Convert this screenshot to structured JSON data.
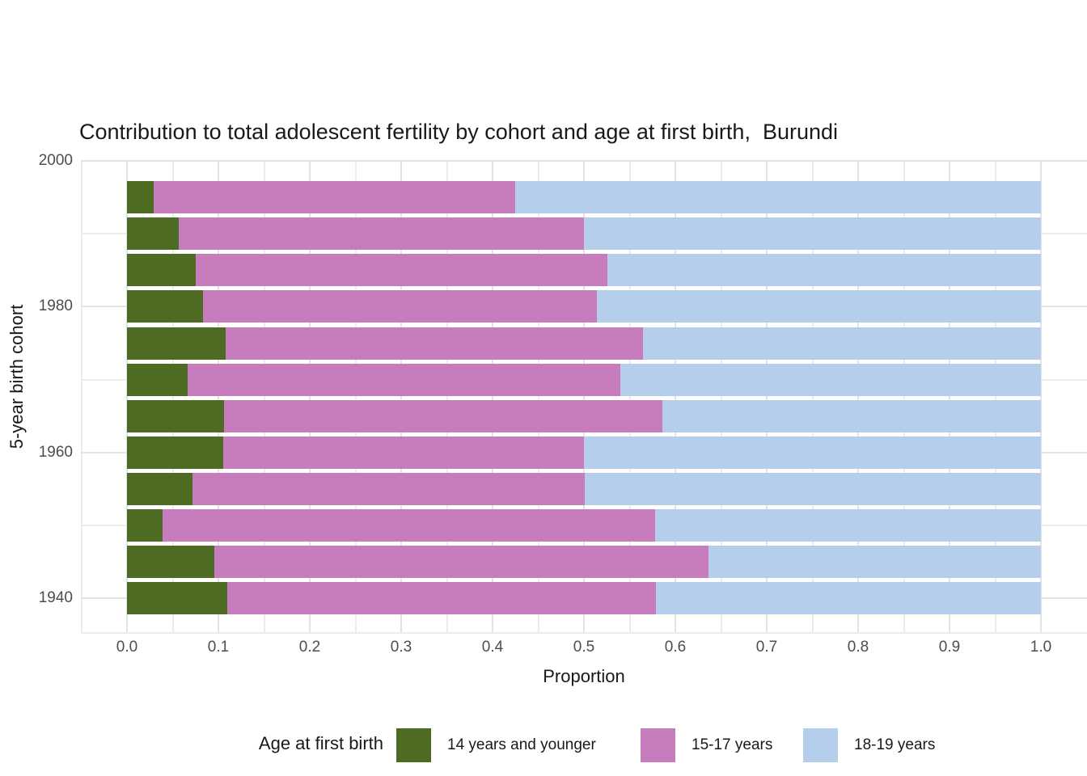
{
  "page": {
    "background": "#FFFFFF"
  },
  "colors": {
    "grid_major": "#E3E3E3",
    "grid_minor": "#ECECEC",
    "tick_text": "#4D4D4D",
    "text": "#191919"
  },
  "chart_data": {
    "type": "bar",
    "variant": "horizontal_stacked_proportion",
    "title": "Contribution to total adolescent fertility by cohort and age at first birth,  Burundi",
    "xlabel": "Proportion",
    "ylabel": "5-year birth cohort",
    "grid": true,
    "legend_position": "bottom",
    "legend": {
      "title": "Age at first birth"
    },
    "xlim": [
      -0.05,
      1.05
    ],
    "x_major_ticks": [
      0.0,
      0.1,
      0.2,
      0.3,
      0.4,
      0.5,
      0.6,
      0.7,
      0.8,
      0.9,
      1.0
    ],
    "x_tick_labels": [
      "0.0",
      "0.1",
      "0.2",
      "0.3",
      "0.4",
      "0.5",
      "0.6",
      "0.7",
      "0.8",
      "0.9",
      "1.0"
    ],
    "x_minor_ticks": [
      -0.05,
      0.05,
      0.15,
      0.25,
      0.35,
      0.45,
      0.55,
      0.65,
      0.75,
      0.85,
      0.95
    ],
    "y_major_ticks": [
      2000,
      1980,
      1960,
      1940
    ],
    "y_tick_labels": [
      "2000",
      "1980",
      "1960",
      "1940"
    ],
    "y_minor_ticks": [
      1990,
      1970,
      1950
    ],
    "categories": [
      1995,
      1990,
      1985,
      1980,
      1975,
      1970,
      1965,
      1960,
      1955,
      1950,
      1945,
      1940
    ],
    "series": [
      {
        "name": "14 years and younger",
        "color": "#4D6B22",
        "values": [
          0.029,
          0.057,
          0.075,
          0.083,
          0.108,
          0.066,
          0.106,
          0.105,
          0.072,
          0.039,
          0.096,
          0.11
        ]
      },
      {
        "name": "15-17 years",
        "color": "#C77CBE",
        "values": [
          0.396,
          0.443,
          0.451,
          0.431,
          0.457,
          0.474,
          0.48,
          0.395,
          0.429,
          0.539,
          0.54,
          0.469
        ]
      },
      {
        "name": "18-19 years",
        "color": "#B5CEEC",
        "values": [
          0.575,
          0.5,
          0.474,
          0.486,
          0.435,
          0.46,
          0.414,
          0.5,
          0.499,
          0.422,
          0.364,
          0.421
        ]
      }
    ]
  }
}
